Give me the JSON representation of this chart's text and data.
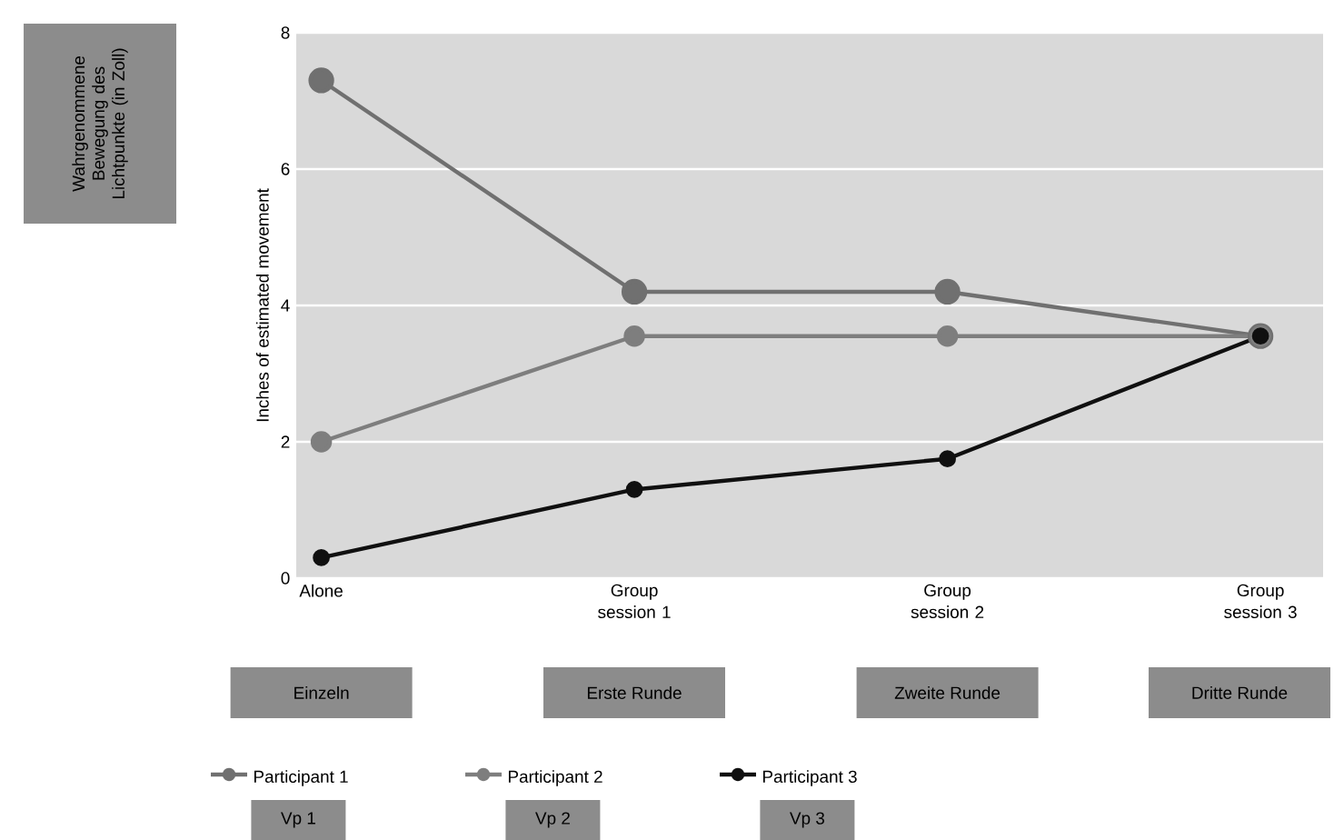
{
  "chart_data": {
    "type": "line",
    "ylabel": "Inches of estimated movement",
    "categories": [
      "Alone",
      "Group session 1",
      "Group session 2",
      "Group session 3"
    ],
    "series": [
      {
        "name": "Participant 1",
        "color": "#707070",
        "values": [
          7.3,
          4.2,
          4.2,
          3.55
        ]
      },
      {
        "name": "Participant 2",
        "color": "#7e7e7e",
        "values": [
          2.0,
          3.55,
          3.55,
          3.55
        ]
      },
      {
        "name": "Participant 3",
        "color": "#101010",
        "values": [
          0.3,
          1.3,
          1.75,
          3.55
        ]
      }
    ],
    "ylim": [
      0,
      8
    ],
    "yticks": [
      0,
      2,
      4,
      6,
      8
    ],
    "grid": "y",
    "legend": "bottom",
    "marker": "circle",
    "line_style": "solid",
    "annotations": [
      "Einzeln",
      "Erste Runde",
      "Zweite Runde",
      "Dritte Runde",
      "Vp 1",
      "Vp 2",
      "Vp 3",
      "Wahrgenommene Bewegung des Lichtpunkte (in Zoll)"
    ]
  }
}
